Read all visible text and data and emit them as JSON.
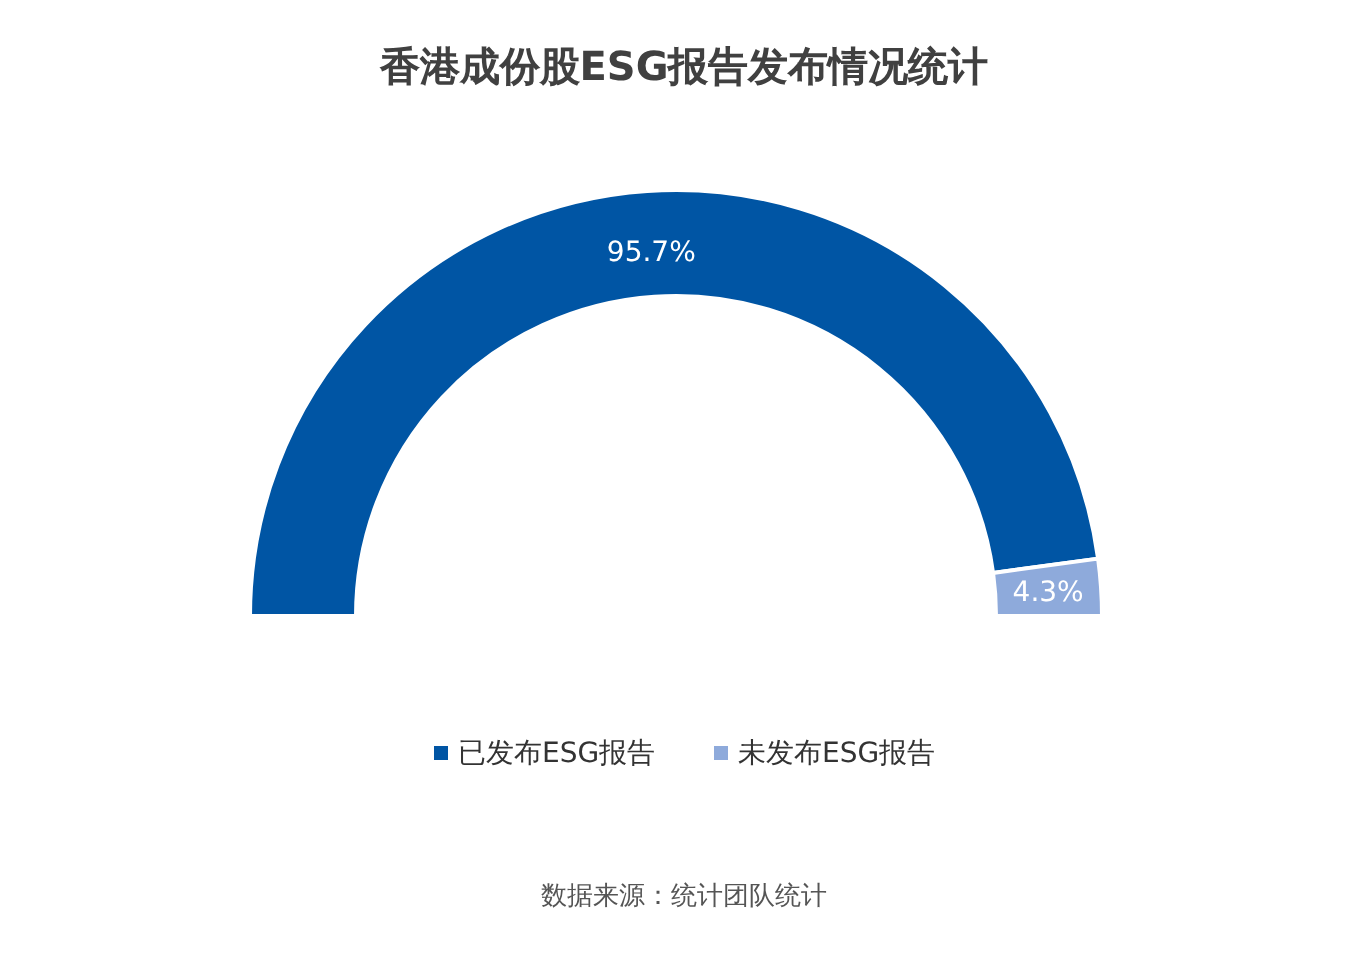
{
  "chart_data": {
    "type": "donut",
    "title": "香港成份股ESG报告发布情况统计",
    "categories": [
      "已发布ESG报告",
      "未发布ESG报告"
    ],
    "values": [
      95.7,
      4.3
    ],
    "colors": [
      "#0055a4",
      "#8eaadb"
    ],
    "value_labels": [
      "95.7%",
      "4.3%"
    ],
    "legend": "bottom",
    "annotations": [
      "数据来源：统计团队统计"
    ]
  }
}
